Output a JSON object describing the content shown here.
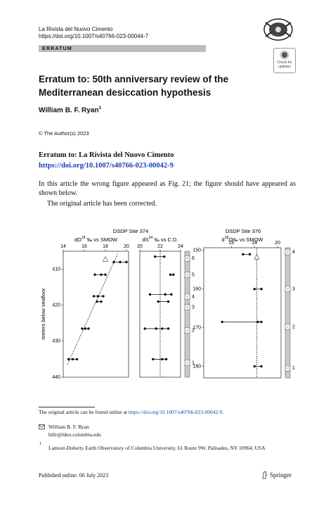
{
  "header": {
    "journal": "La Rivista del Nuovo Cimento",
    "doi": "https://doi.org/10.1007/s40766-023-00044-7",
    "section": "ERRATUM",
    "badge": "Check for updates"
  },
  "title": "Erratum to: 50th anniversary review of the Mediterranean desiccation hypothesis",
  "author": {
    "name": "William B. F. Ryan",
    "sup": "1"
  },
  "copyright": "© The Author(s) 2023",
  "erratum": {
    "heading": "Erratum to: La Rivista del Nuovo Cimento",
    "link": "https://doi.org/10.1007/s40766-023-00042-9"
  },
  "body": [
    "In this article the wrong figure appeared as Fig. 21; the figure should have appeared as shown below.",
    "The original article has been corrected."
  ],
  "figure": {
    "sites": [
      {
        "title": "DSDP Site 374"
      },
      {
        "title": "DSDP Site 376"
      }
    ],
    "y_label": "meters below seafloor",
    "panels": [
      {
        "xlabel": {
          "base": "dO",
          "sup": "18",
          "rest": " ‰ vs SMOW"
        },
        "xlim": [
          14,
          20.2
        ],
        "xticks": [
          14,
          16,
          18,
          20
        ],
        "ylim": [
          405,
          440
        ],
        "yticks": [
          410,
          420,
          430,
          440
        ],
        "samples": [
          {
            "depth": 408,
            "values": [
              18.8,
              19.4,
              20.0
            ]
          },
          {
            "depth": 411.5,
            "values": [
              17.0,
              17.6,
              18.0
            ]
          },
          {
            "depth": 417.5,
            "values": [
              16.9,
              17.3,
              17.8
            ]
          },
          {
            "depth": 419,
            "values": [
              17.2,
              17.6
            ]
          },
          {
            "depth": 426.5,
            "values": [
              15.8,
              16.1,
              16.4
            ]
          },
          {
            "depth": 435,
            "values": [
              14.5,
              14.9,
              15.3
            ]
          }
        ],
        "trend": {
          "x": [
            14.4,
            19.2
          ],
          "y": [
            436.5,
            405.5
          ]
        },
        "open_markers": [
          {
            "x": 18.0,
            "depth": 407.3
          }
        ]
      },
      {
        "xlabel": {
          "base": "dS",
          "sup": "34",
          "rest": " ‰ vs C.D."
        },
        "xlim": [
          20,
          24
        ],
        "xticks": [
          20,
          22,
          24
        ],
        "ylim": [
          405,
          440
        ],
        "samples": [
          {
            "depth": 406.5,
            "values": [
              21.5,
              22.4
            ]
          },
          {
            "depth": 411.5,
            "values": [
              23.0,
              23.3
            ]
          },
          {
            "depth": 417,
            "values": [
              21.0,
              22.5,
              23.1
            ]
          },
          {
            "depth": 419,
            "values": [
              21.8,
              22.8
            ]
          },
          {
            "depth": 426.5,
            "values": [
              20.5,
              21.6,
              22.2,
              22.8
            ]
          },
          {
            "depth": 435,
            "values": [
              21.3,
              22.2,
              22.6
            ]
          }
        ],
        "trend": {
          "x": [
            22,
            22
          ],
          "y": [
            405,
            440
          ]
        },
        "units": [
          {
            "label": "6",
            "depth": 407
          },
          {
            "label": "5",
            "depth": 411.6
          },
          {
            "label": "4",
            "depth": 417.6
          },
          {
            "label": "3",
            "depth": 420.6
          },
          {
            "label": "2",
            "depth": 427
          },
          {
            "label": "1",
            "depth": 436
          }
        ]
      },
      {
        "xlabel": {
          "base": "d",
          "sup": "18",
          "rest": "O‰ vs SMOW"
        },
        "xlim": [
          13.6,
          20.3
        ],
        "xticks": [
          16,
          18,
          20
        ],
        "ylim": [
          149.3,
          183
        ],
        "yticks": [
          150,
          160,
          170,
          180
        ],
        "samples": [
          {
            "depth": 151,
            "values": [
              17.0,
              17.6
            ]
          },
          {
            "depth": 160,
            "values": [
              18.0,
              18.6
            ]
          },
          {
            "depth": 168.5,
            "values": [
              15.2,
              18.3,
              18.6
            ]
          },
          {
            "depth": 180,
            "values": [
              18.0,
              18.6
            ]
          }
        ],
        "trend": {
          "x": [
            18.2,
            18.2
          ],
          "y": [
            149.3,
            183
          ]
        },
        "open_markers": [
          {
            "x": 18.2,
            "depth": 151.8
          }
        ],
        "units": [
          {
            "label": "4",
            "depth": 150.4
          },
          {
            "label": "3",
            "depth": 160
          },
          {
            "label": "2",
            "depth": 169.8
          },
          {
            "label": "1",
            "depth": 180.5
          }
        ]
      }
    ]
  },
  "footnote": {
    "text": "The original article can be found online at",
    "link": "https://doi.org/10.1007/s40766-023-00042-9",
    "end": "."
  },
  "contact": {
    "name": "William B. F. Ryan",
    "email": "billr@ldeo.columbia.edu"
  },
  "affiliation": {
    "num": "1",
    "text": "Lamont-Doherty Earth Observatory of Columbia University, 61 Route 9W, Palisades, NY 10964, USA"
  },
  "footer": {
    "published": "Published online: 06 July 2023",
    "publisher": "Springer"
  }
}
